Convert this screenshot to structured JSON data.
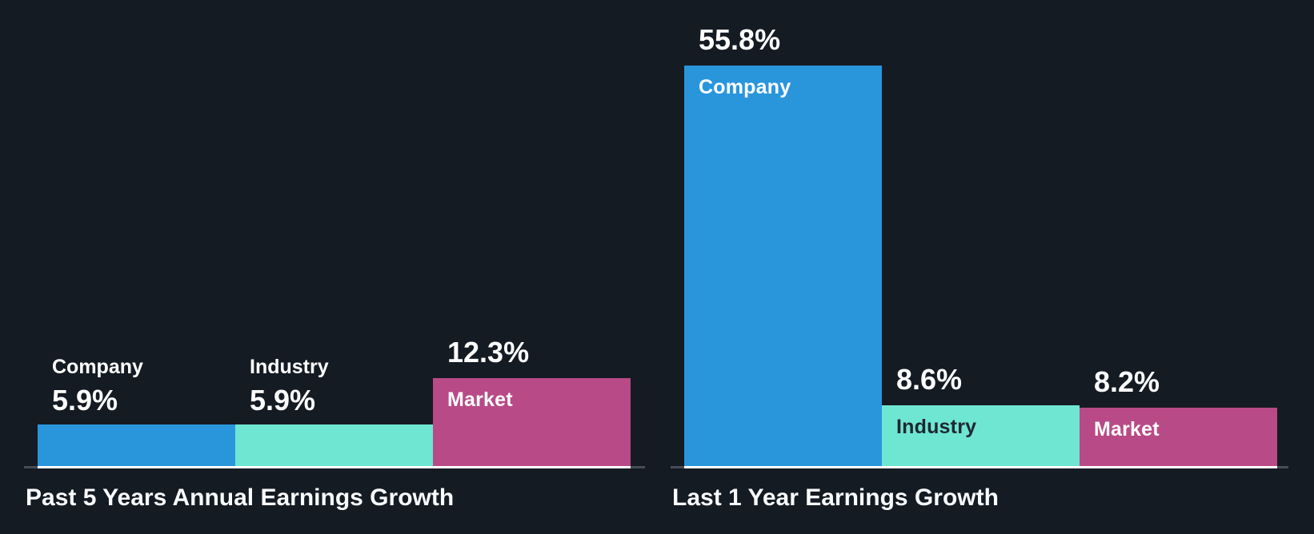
{
  "panel": {
    "background_color": "#151b23",
    "axis_color": "#474d54",
    "bar_base_color": "#ffffff",
    "label_colors": {
      "light": "#ffffff",
      "dark": "#1e2730"
    }
  },
  "chart_data": [
    {
      "type": "bar",
      "title": "Past 5 Years Annual Earnings Growth",
      "categories": [
        "Company",
        "Industry",
        "Market"
      ],
      "values": [
        5.9,
        5.9,
        12.3
      ],
      "value_labels": [
        "5.9%",
        "5.9%",
        "12.3%"
      ],
      "bar_colors": [
        "#2996dc",
        "#6fe6d2",
        "#b84a87"
      ],
      "label_placement": [
        "above",
        "above",
        "inside"
      ],
      "name_label_styles": [
        "light",
        "light",
        "light"
      ],
      "unit": "%",
      "xlabel": "",
      "ylabel": "",
      "ylim": [
        0,
        65
      ],
      "grid": false,
      "legend": false
    },
    {
      "type": "bar",
      "title": "Last 1 Year Earnings Growth",
      "categories": [
        "Company",
        "Industry",
        "Market"
      ],
      "values": [
        55.8,
        8.6,
        8.2
      ],
      "value_labels": [
        "55.8%",
        "8.6%",
        "8.2%"
      ],
      "bar_colors": [
        "#2996dc",
        "#6fe6d2",
        "#b84a87"
      ],
      "label_placement": [
        "inside",
        "inside",
        "inside"
      ],
      "name_label_styles": [
        "light",
        "dark",
        "light"
      ],
      "unit": "%",
      "xlabel": "",
      "ylabel": "",
      "ylim": [
        0,
        65
      ],
      "grid": false,
      "legend": false
    }
  ]
}
